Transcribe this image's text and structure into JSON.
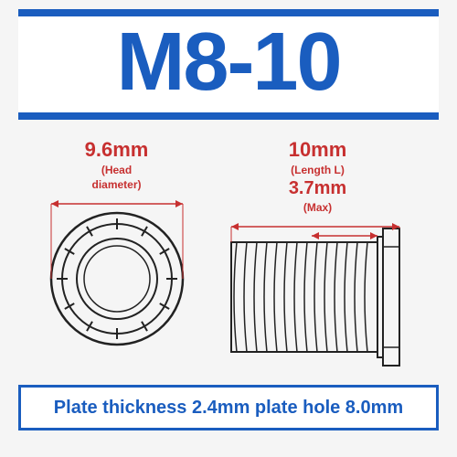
{
  "colors": {
    "primary": "#1a5dbf",
    "dim": "#c73030",
    "line": "#222222",
    "bg": "#f5f5f5",
    "white": "#ffffff"
  },
  "header": {
    "title": "M8-10"
  },
  "top_view": {
    "dim_value": "9.6mm",
    "dim_sub": "(Head",
    "dim_sub2": "diameter)",
    "outer_r": 72,
    "ring_r": 60,
    "inner_r": 44,
    "inner2_r": 36,
    "tick_count": 12
  },
  "side_view": {
    "length_value": "10mm",
    "length_sub": "(Length L)",
    "sub_value": "3.7mm",
    "sub_sub": "(Max)",
    "body_w": 160,
    "body_h": 120,
    "head_w": 18,
    "head_h": 150,
    "thread_pitch": 11
  },
  "footer": {
    "text": "Plate thickness 2.4mm plate hole 8.0mm"
  }
}
